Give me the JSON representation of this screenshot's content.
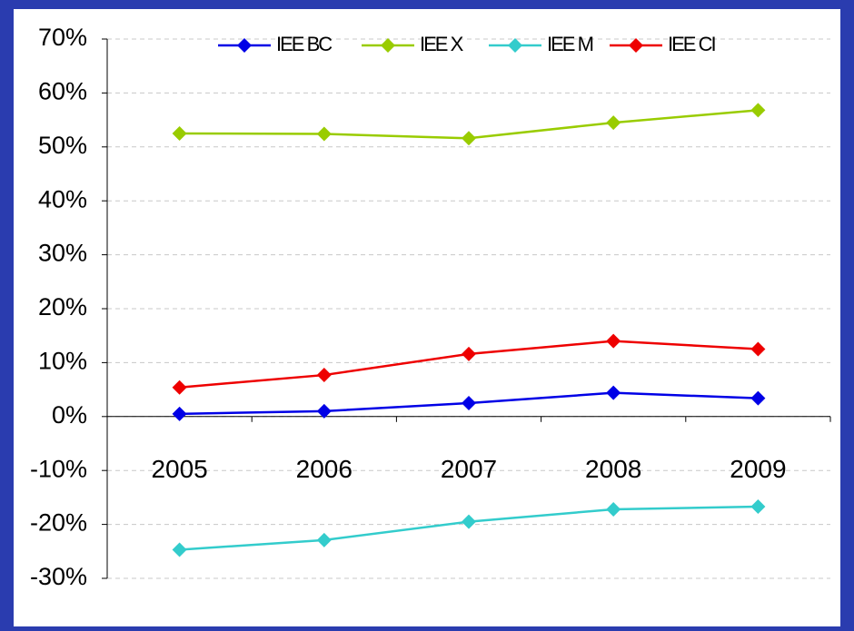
{
  "chart_data": {
    "type": "line",
    "categories": [
      "2005",
      "2006",
      "2007",
      "2008",
      "2009"
    ],
    "series": [
      {
        "name": "IEE BC",
        "color": "#0000e6",
        "values": [
          0.5,
          1.0,
          2.5,
          4.4,
          3.4
        ]
      },
      {
        "name": "IEE X",
        "color": "#99cc00",
        "values": [
          52.5,
          52.4,
          51.6,
          54.5,
          56.8
        ]
      },
      {
        "name": "IEE M",
        "color": "#33cccc",
        "values": [
          -24.7,
          -22.9,
          -19.5,
          -17.2,
          -16.7
        ]
      },
      {
        "name": "IEE CI",
        "color": "#ee0000",
        "values": [
          5.4,
          7.7,
          11.6,
          14.0,
          12.5
        ]
      }
    ],
    "ylim": [
      -30,
      70
    ],
    "yticks": [
      {
        "value": -30,
        "label": "-30%"
      },
      {
        "value": -20,
        "label": "-20%"
      },
      {
        "value": -10,
        "label": "-10%"
      },
      {
        "value": 0,
        "label": "0%"
      },
      {
        "value": 10,
        "label": "10%"
      },
      {
        "value": 20,
        "label": "20%"
      },
      {
        "value": 30,
        "label": "30%"
      },
      {
        "value": 40,
        "label": "40%"
      },
      {
        "value": 50,
        "label": "50%"
      },
      {
        "value": 60,
        "label": "60%"
      },
      {
        "value": 70,
        "label": "70%"
      }
    ],
    "grid": true,
    "legend": "top"
  }
}
